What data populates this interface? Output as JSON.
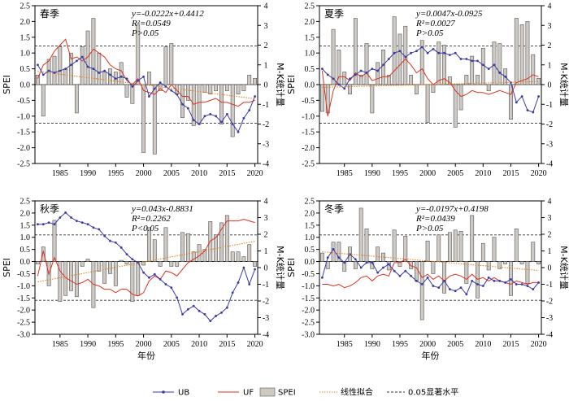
{
  "legend": {
    "items": [
      {
        "key": "ub",
        "label": "UB",
        "color": "#3a3aa8"
      },
      {
        "key": "uf",
        "label": "UF",
        "color": "#e03020"
      },
      {
        "key": "spei",
        "label": "SPEI",
        "color": "#cfc9c4"
      },
      {
        "key": "fit",
        "label": "线性拟合",
        "color": "#e8841e"
      },
      {
        "key": "sig",
        "label": "0.05显著水平",
        "color": "#333333"
      }
    ]
  },
  "chart_data": [
    {
      "type": "bar+line",
      "title": "春季",
      "equation": {
        "line1": "y=-0.0222x+0.4412",
        "line2": "R²=0.0549",
        "line3": "P>0.05"
      },
      "xlabel": "",
      "ylabel_left": "SPEI",
      "ylabel_right": "M-K统计量",
      "xlim": [
        1981,
        2020
      ],
      "ylim_left": [
        -2.5,
        2.5
      ],
      "ylim_right": [
        -4,
        4
      ],
      "xticks": [
        1985,
        1990,
        1995,
        2000,
        2005,
        2010,
        2015,
        2020
      ],
      "yticks_left": [
        -2.5,
        -2.0,
        -1.5,
        -1.0,
        -0.5,
        0.0,
        0.5,
        1.0,
        1.5,
        2.0,
        2.5
      ],
      "yticks_right": [
        -4,
        -3,
        -2,
        -1,
        0,
        1,
        2,
        3,
        4
      ],
      "significance_levels": [
        1.96,
        -1.96
      ],
      "fit": {
        "slope": -0.0222,
        "intercept": 0.4412
      },
      "years": [
        1981,
        1982,
        1983,
        1984,
        1985,
        1986,
        1987,
        1988,
        1989,
        1990,
        1991,
        1992,
        1993,
        1994,
        1995,
        1996,
        1997,
        1998,
        1999,
        2000,
        2001,
        2002,
        2003,
        2004,
        2005,
        2006,
        2007,
        2008,
        2009,
        2010,
        2011,
        2012,
        2013,
        2014,
        2015,
        2016,
        2017,
        2018,
        2019,
        2020
      ],
      "spei": [
        0.3,
        -1.0,
        0.8,
        0.9,
        1.2,
        0.5,
        1.0,
        -0.9,
        1.2,
        1.7,
        2.1,
        1.0,
        0.4,
        0.5,
        0.4,
        0.7,
        -0.4,
        -0.6,
        1.9,
        -2.15,
        0.4,
        -2.2,
        -0.2,
        1.2,
        1.3,
        -0.3,
        -1.05,
        -0.5,
        -1.3,
        -1.25,
        -0.25,
        -0.3,
        -0.2,
        -1.25,
        -0.2,
        -1.65,
        -0.3,
        -0.2,
        0.3,
        0.2
      ],
      "uf": [
        0.3,
        1.0,
        1.2,
        1.7,
        2.0,
        2.3,
        1.3,
        1.4,
        1.2,
        1.4,
        1.8,
        1.6,
        1.4,
        1.0,
        0.8,
        0.7,
        0.2,
        0.0,
        0.3,
        -0.3,
        -0.4,
        -0.5,
        -0.2,
        -0.4,
        0.0,
        -0.3,
        -0.6,
        -0.6,
        -1.0,
        -0.9,
        -0.9,
        -0.8,
        -0.7,
        -0.9,
        -0.9,
        -1.0,
        -1.1,
        -0.9,
        -0.9,
        -0.8
      ],
      "ub": [
        1.0,
        0.5,
        0.7,
        0.6,
        0.7,
        0.8,
        1.0,
        1.2,
        1.4,
        0.9,
        0.8,
        0.6,
        0.7,
        0.5,
        0.3,
        0.4,
        0.3,
        -0.1,
        0.2,
        0.4,
        -0.6,
        -0.2,
        0.1,
        -0.1,
        -0.3,
        -0.5,
        -1.0,
        -1.2,
        -1.8,
        -2.0,
        -1.6,
        -1.5,
        -1.6,
        -1.9,
        -1.5,
        -2.0,
        -2.4,
        -1.7,
        -1.3,
        -0.6
      ]
    },
    {
      "type": "bar+line",
      "title": "夏季",
      "equation": {
        "line1": "y=0.0047x-0.0925",
        "line2": "R²=0.0027",
        "line3": "P>0.05"
      },
      "xlabel": "",
      "ylabel_left": "SPEI",
      "ylabel_right": "M-K统计量",
      "xlim": [
        1981,
        2020
      ],
      "ylim_left": [
        -2.5,
        2.5
      ],
      "ylim_right": [
        -4,
        4
      ],
      "xticks": [
        1985,
        1990,
        1995,
        2000,
        2005,
        2010,
        2015,
        2020
      ],
      "yticks_left": [
        -2.5,
        -2.0,
        -1.5,
        -1.0,
        -0.5,
        0.0,
        0.5,
        1.0,
        1.5,
        2.0,
        2.5
      ],
      "yticks_right": [
        -4,
        -3,
        -2,
        -1,
        0,
        1,
        2,
        3,
        4
      ],
      "significance_levels": [
        1.96,
        -1.96
      ],
      "fit": {
        "slope": 0.0047,
        "intercept": -0.0925
      },
      "years": [
        1981,
        1982,
        1983,
        1984,
        1985,
        1986,
        1987,
        1988,
        1989,
        1990,
        1991,
        1992,
        1993,
        1994,
        1995,
        1996,
        1997,
        1998,
        1999,
        2000,
        2001,
        2002,
        2003,
        2004,
        2005,
        2006,
        2007,
        2008,
        2009,
        2010,
        2011,
        2012,
        2013,
        2014,
        2015,
        2016,
        2017,
        2018,
        2019,
        2020
      ],
      "spei": [
        -0.85,
        -0.9,
        1.75,
        1.1,
        0.4,
        -0.3,
        2.1,
        0.3,
        1.3,
        -0.9,
        0.7,
        1.1,
        0.3,
        2.15,
        1.6,
        1.85,
        0.3,
        -0.3,
        1.4,
        -1.2,
        -0.25,
        1.35,
        1.25,
        0.25,
        -1.35,
        -0.8,
        0.3,
        0.9,
        0.3,
        1.15,
        -0.2,
        1.35,
        1.3,
        0.5,
        -1.1,
        2.1,
        1.9,
        2.0,
        0.95,
        0.2
      ],
      "uf": [
        0.7,
        -1.6,
        -0.3,
        0.4,
        0.4,
        0.2,
        0.6,
        0.4,
        0.6,
        0.2,
        0.3,
        0.4,
        0.4,
        0.7,
        1.0,
        1.3,
        1.0,
        0.6,
        0.8,
        0.3,
        0.0,
        0.2,
        0.3,
        0.1,
        -0.3,
        -0.6,
        -0.5,
        -0.3,
        -0.4,
        -0.4,
        -0.5,
        -0.4,
        -0.3,
        -0.4,
        -0.5,
        0.1,
        0.2,
        0.3,
        0.5,
        0.4
      ],
      "ub": [
        0.8,
        0.5,
        0.3,
        0.0,
        -0.2,
        0.3,
        0.5,
        0.7,
        0.6,
        0.8,
        0.7,
        1.0,
        1.3,
        1.6,
        1.7,
        1.4,
        1.6,
        1.7,
        1.9,
        1.6,
        1.8,
        1.6,
        1.6,
        1.5,
        1.6,
        1.3,
        1.3,
        1.2,
        1.2,
        1.0,
        0.8,
        1.0,
        0.6,
        0.4,
        0.1,
        -0.9,
        -0.6,
        -1.3,
        -1.4,
        -0.6
      ]
    },
    {
      "type": "bar+line",
      "title": "秋季",
      "equation": {
        "line1": "y=0.043x-0.8831",
        "line2": "R²=0.2262",
        "line3": "P<0.05"
      },
      "xlabel": "年份",
      "ylabel_left": "SPEI",
      "ylabel_right": "M-K统计量",
      "xlim": [
        1981,
        2020
      ],
      "ylim_left": [
        -3.0,
        2.5
      ],
      "ylim_right": [
        -4,
        4
      ],
      "xticks": [
        1985,
        1990,
        1995,
        2000,
        2005,
        2010,
        2015,
        2020
      ],
      "yticks_left": [
        -3.0,
        -2.5,
        -2.0,
        -1.5,
        -1.0,
        -0.5,
        0.0,
        0.5,
        1.0,
        1.5,
        2.0,
        2.5
      ],
      "yticks_right": [
        -4,
        -3,
        -2,
        -1,
        0,
        1,
        2,
        3,
        4
      ],
      "significance_levels": [
        1.96,
        -1.96
      ],
      "fit": {
        "slope": 0.043,
        "intercept": -0.8831
      },
      "years": [
        1981,
        1982,
        1983,
        1984,
        1985,
        1986,
        1987,
        1988,
        1989,
        1990,
        1991,
        1992,
        1993,
        1994,
        1995,
        1996,
        1997,
        1998,
        1999,
        2000,
        2001,
        2002,
        2003,
        2004,
        2005,
        2006,
        2007,
        2008,
        2009,
        2010,
        2011,
        2012,
        2013,
        2014,
        2015,
        2016,
        2017,
        2018,
        2019,
        2020
      ],
      "spei": [
        -0.1,
        0.6,
        -1.0,
        1.7,
        -1.65,
        -1.4,
        -1.2,
        -1.45,
        -0.2,
        0.1,
        -1.9,
        -0.4,
        -0.9,
        -0.5,
        -1.0,
        0.05,
        -0.1,
        -1.65,
        -1.4,
        -0.15,
        1.4,
        0.9,
        -0.2,
        1.4,
        -0.2,
        -0.2,
        1.2,
        1.15,
        0.4,
        0.7,
        0.5,
        1.65,
        1.1,
        1.6,
        1.9,
        0.4,
        0.4,
        0.2,
        0.7,
        -0.2
      ],
      "uf": [
        -0.5,
        1.0,
        -0.4,
        0.6,
        -0.2,
        -0.6,
        -0.8,
        -1.0,
        -0.9,
        -0.7,
        -1.0,
        -1.1,
        -1.3,
        -1.3,
        -1.5,
        -1.3,
        -1.3,
        -1.6,
        -1.7,
        -1.5,
        -0.8,
        -0.5,
        -0.7,
        -0.2,
        -0.3,
        -0.5,
        -0.1,
        0.3,
        0.5,
        0.7,
        1.0,
        1.6,
        1.8,
        2.3,
        2.8,
        2.8,
        2.8,
        2.9,
        2.8,
        2.7
      ],
      "ub": [
        2.6,
        2.6,
        2.7,
        2.6,
        3.0,
        3.3,
        3.0,
        2.8,
        2.7,
        2.6,
        2.4,
        2.3,
        1.9,
        1.6,
        1.5,
        1.2,
        0.8,
        0.5,
        0.3,
        -0.3,
        -0.6,
        -0.4,
        -0.7,
        -1.0,
        -1.2,
        -1.8,
        -2.8,
        -2.5,
        -2.3,
        -2.6,
        -2.8,
        -3.2,
        -2.9,
        -2.7,
        -2.4,
        -1.5,
        -0.9,
        0.0,
        -1.0,
        -0.1
      ]
    },
    {
      "type": "bar+line",
      "title": "冬季",
      "equation": {
        "line1": "y=-0.0197x+0.4198",
        "line2": "R²=0.0439",
        "line3": "P>0.05"
      },
      "xlabel": "年份",
      "ylabel_left": "SPEI",
      "ylabel_right": "M-K统计量",
      "xlim": [
        1981,
        2020
      ],
      "ylim_left": [
        -3.0,
        2.5
      ],
      "ylim_right": [
        -4,
        4
      ],
      "xticks": [
        1985,
        1990,
        1995,
        2000,
        2005,
        2010,
        2015,
        2020
      ],
      "yticks_left": [
        -3.0,
        -2.5,
        -2.0,
        -1.5,
        -1.0,
        -0.5,
        0.0,
        0.5,
        1.0,
        1.5,
        2.0,
        2.5
      ],
      "yticks_right": [
        -4,
        -3,
        -2,
        -1,
        0,
        1,
        2,
        3,
        4
      ],
      "significance_levels": [
        1.96,
        -1.96
      ],
      "fit": {
        "slope": -0.0197,
        "intercept": 0.4198
      },
      "years": [
        1981,
        1982,
        1983,
        1984,
        1985,
        1986,
        1987,
        1988,
        1989,
        1990,
        1991,
        1992,
        1993,
        1994,
        1995,
        1996,
        1997,
        1998,
        1999,
        2000,
        2001,
        2002,
        2003,
        2004,
        2005,
        2006,
        2007,
        2008,
        2009,
        2010,
        2011,
        2012,
        2013,
        2014,
        2015,
        2016,
        2017,
        2018,
        2019,
        2020
      ],
      "spei": [
        0.35,
        -0.3,
        0.8,
        0.8,
        -0.4,
        0.6,
        -0.3,
        2.2,
        1.35,
        -0.3,
        0.6,
        0.35,
        -0.35,
        1.3,
        -0.2,
        1.05,
        -0.3,
        -0.8,
        -2.4,
        0.85,
        -0.5,
        1.1,
        -1.3,
        1.2,
        1.3,
        1.25,
        -0.9,
        1.9,
        -1.5,
        0.75,
        -0.35,
        1.0,
        -0.3,
        -0.1,
        -1.4,
        1.35,
        -0.1,
        -0.9,
        0.8,
        -0.1
      ],
      "uf": [
        -1.0,
        -1.0,
        -1.1,
        -1.0,
        -1.2,
        -1.1,
        -0.9,
        -0.6,
        -0.5,
        -0.8,
        -0.5,
        -0.4,
        -0.5,
        0.3,
        0.3,
        0.5,
        0.1,
        0.0,
        -0.6,
        -0.4,
        -0.7,
        -0.5,
        -0.8,
        -0.5,
        -0.4,
        -0.5,
        -0.7,
        -0.4,
        -0.7,
        -0.6,
        -0.8,
        -0.6,
        -0.8,
        -0.9,
        -1.0,
        -0.8,
        -0.9,
        -1.0,
        -0.9,
        -0.9
      ],
      "ub": [
        -0.6,
        0.6,
        1.1,
        0.6,
        0.3,
        0.8,
        0.5,
        0.0,
        0.3,
        0.3,
        -0.3,
        0.0,
        0.2,
        -0.2,
        -0.5,
        -0.2,
        -0.5,
        -0.8,
        -1.0,
        -0.6,
        -1.1,
        -1.2,
        -0.8,
        -1.3,
        -1.4,
        -1.2,
        -1.6,
        -0.8,
        -1.0,
        -1.1,
        -0.6,
        -0.8,
        -0.8,
        -0.9,
        -0.7,
        -1.0,
        -1.0,
        -1.1,
        -1.3,
        -0.9
      ]
    }
  ]
}
